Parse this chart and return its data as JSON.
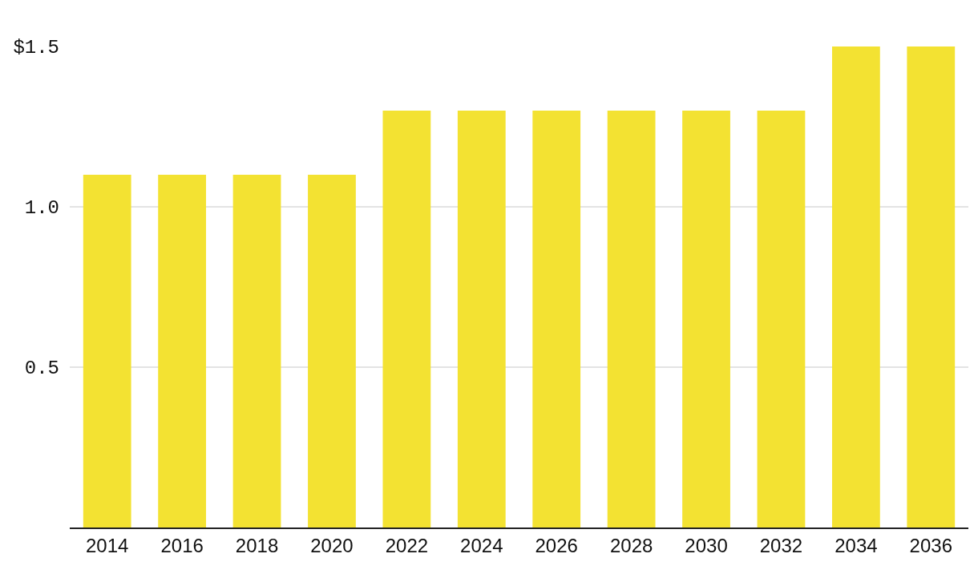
{
  "chart_data": {
    "type": "bar",
    "categories": [
      "2014",
      "2016",
      "2018",
      "2020",
      "2022",
      "2024",
      "2026",
      "2028",
      "2030",
      "2032",
      "2034",
      "2036"
    ],
    "values": [
      1.1,
      1.1,
      1.1,
      1.1,
      1.3,
      1.3,
      1.3,
      1.3,
      1.3,
      1.3,
      1.5,
      1.5
    ],
    "color": "#f3e232",
    "ylim": [
      0,
      1.5
    ],
    "yticks": [
      {
        "value": 0.5,
        "label": "0.5"
      },
      {
        "value": 1,
        "label": "1.0"
      },
      {
        "value": 1.5,
        "label": "$1.5"
      }
    ],
    "grid": "y"
  }
}
